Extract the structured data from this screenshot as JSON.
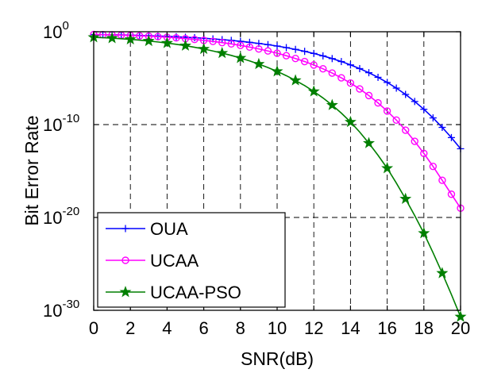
{
  "chart_data": {
    "type": "line",
    "xlabel": "SNR(dB)",
    "ylabel": "Bit Error Rate",
    "xlim": [
      0,
      20
    ],
    "ylim": [
      1e-30,
      1
    ],
    "yscale": "log",
    "grid": true,
    "legend_position": "bottom-left",
    "x_ticks": [
      "0",
      "2",
      "4",
      "6",
      "8",
      "10",
      "12",
      "14",
      "16",
      "18",
      "20"
    ],
    "y_ticks": [
      {
        "base": "10",
        "exp": "0",
        "value": 1
      },
      {
        "base": "10",
        "exp": "-10",
        "value": 1e-10
      },
      {
        "base": "10",
        "exp": "-20",
        "value": 1e-20
      },
      {
        "base": "10",
        "exp": "-30",
        "value": 1e-30
      }
    ],
    "x": [
      0,
      0.5,
      1,
      1.5,
      2,
      2.5,
      3,
      3.5,
      4,
      4.5,
      5,
      5.5,
      6,
      6.5,
      7,
      7.5,
      8,
      8.5,
      9,
      9.5,
      10,
      10.5,
      11,
      11.5,
      12,
      12.5,
      13,
      13.5,
      14,
      14.5,
      15,
      15.5,
      16,
      16.5,
      17,
      17.5,
      18,
      18.5,
      19,
      19.5,
      20
    ],
    "series": [
      {
        "name": "OUA",
        "color": "#0000ff",
        "marker": "plus",
        "marker_every": 1,
        "log10_y": [
          -0.3,
          -0.32,
          -0.33,
          -0.35,
          -0.37,
          -0.4,
          -0.43,
          -0.46,
          -0.5,
          -0.54,
          -0.59,
          -0.64,
          -0.7,
          -0.77,
          -0.85,
          -0.93,
          -1.03,
          -1.14,
          -1.26,
          -1.39,
          -1.54,
          -1.71,
          -1.9,
          -2.11,
          -2.34,
          -2.6,
          -2.89,
          -3.21,
          -3.57,
          -3.97,
          -4.41,
          -4.91,
          -5.46,
          -6.07,
          -6.75,
          -7.51,
          -8.35,
          -9.28,
          -10.3,
          -11.4,
          -12.6
        ]
      },
      {
        "name": "UCAA",
        "color": "#ff00ff",
        "marker": "circle",
        "marker_every": 1,
        "log10_y": [
          -0.3,
          -0.32,
          -0.34,
          -0.37,
          -0.4,
          -0.44,
          -0.48,
          -0.53,
          -0.59,
          -0.66,
          -0.74,
          -0.83,
          -0.93,
          -1.04,
          -1.17,
          -1.31,
          -1.47,
          -1.65,
          -1.85,
          -2.07,
          -2.31,
          -2.58,
          -2.88,
          -3.21,
          -3.58,
          -3.99,
          -4.45,
          -4.96,
          -5.53,
          -6.16,
          -6.87,
          -7.66,
          -8.54,
          -9.51,
          -10.6,
          -11.8,
          -13.1,
          -14.5,
          -16.0,
          -17.5,
          -19.0
        ]
      },
      {
        "name": "UCAA-PSO",
        "color": "#007f00",
        "marker": "star",
        "marker_every": 2,
        "log10_y": [
          -0.6,
          -0.64,
          -0.69,
          -0.75,
          -0.82,
          -0.9,
          -1.0,
          -1.1,
          -1.22,
          -1.35,
          -1.5,
          -1.67,
          -1.86,
          -2.07,
          -2.3,
          -2.55,
          -2.83,
          -3.14,
          -3.48,
          -3.86,
          -4.27,
          -4.73,
          -5.24,
          -5.8,
          -6.43,
          -7.13,
          -7.9,
          -8.76,
          -9.72,
          -10.8,
          -12.0,
          -13.3,
          -14.7,
          -16.3,
          -18.0,
          -19.8,
          -21.7,
          -23.8,
          -26.0,
          -28.3,
          -30.7
        ]
      }
    ]
  }
}
